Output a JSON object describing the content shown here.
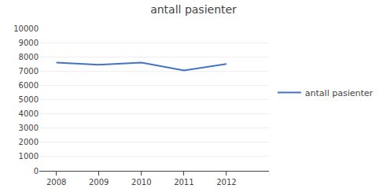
{
  "chart_data": {
    "type": "line",
    "title": "antall pasienter",
    "x": [
      2008,
      2009,
      2010,
      2011,
      2012
    ],
    "series": [
      {
        "name": "antall pasienter",
        "color": "#4472C4",
        "values": [
          7600,
          7450,
          7600,
          7050,
          7500
        ]
      }
    ],
    "xlim": [
      2007.6,
      2013.0
    ],
    "xticks": [
      2008,
      2009,
      2010,
      2011,
      2012
    ],
    "ylim": [
      0,
      10000
    ],
    "yticks": [
      0,
      1000,
      2000,
      3000,
      4000,
      5000,
      6000,
      7000,
      8000,
      9000,
      10000
    ],
    "grid": true,
    "legend": "right"
  }
}
